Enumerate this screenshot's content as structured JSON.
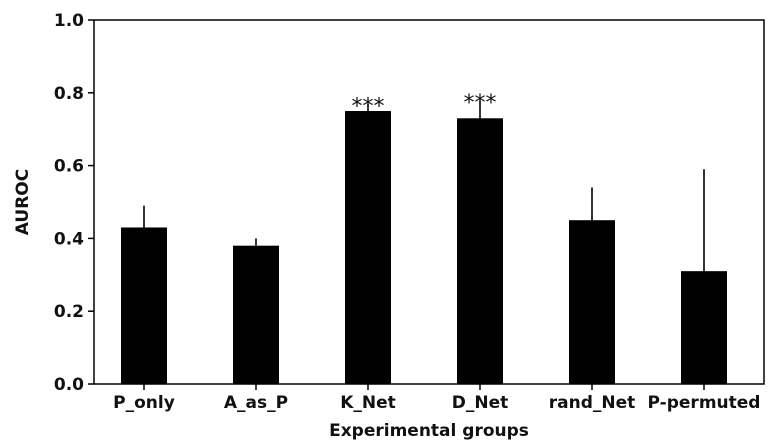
{
  "chart_data": {
    "type": "bar",
    "title": "",
    "xlabel": "Experimental groups",
    "ylabel": "AUROC",
    "ylim": [
      0,
      1.0
    ],
    "yticks": [
      "0.0",
      "0.2",
      "0.4",
      "0.6",
      "0.8",
      "1.0"
    ],
    "categories": [
      "P_only",
      "A_as_P",
      "K_Net",
      "D_Net",
      "rand_Net",
      "P-permuted"
    ],
    "values": [
      0.43,
      0.38,
      0.75,
      0.73,
      0.45,
      0.31
    ],
    "error_upper": [
      0.49,
      0.4,
      0.77,
      0.78,
      0.54,
      0.59
    ],
    "annotations": [
      "",
      "",
      "***",
      "***",
      "",
      ""
    ],
    "grid": false,
    "bar_color": "#000000"
  }
}
